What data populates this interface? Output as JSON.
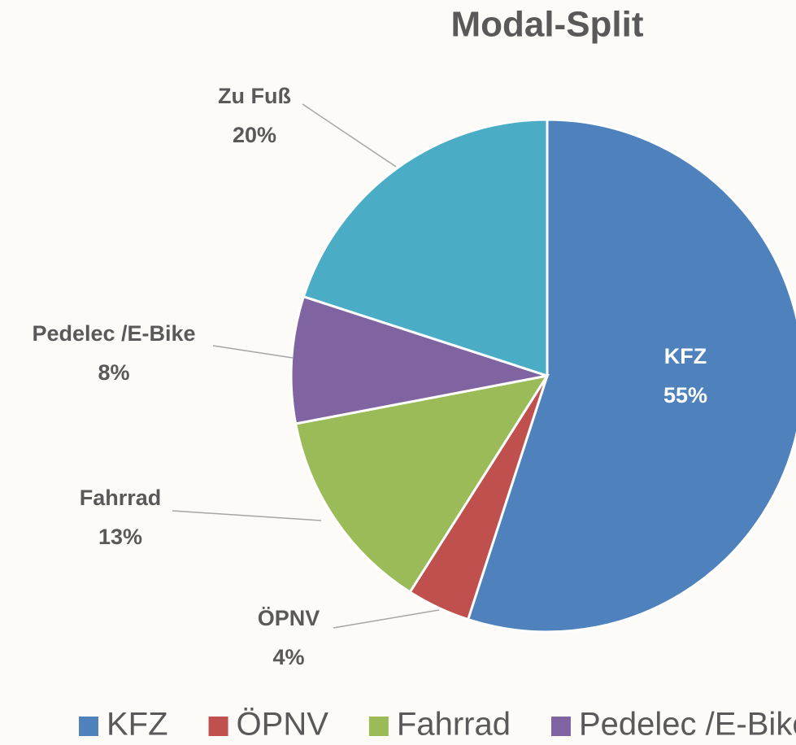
{
  "chart_data": {
    "type": "pie",
    "title": "Modal-Split",
    "categories": [
      "KFZ",
      "ÖPNV",
      "Fahrrad",
      "Pedelec /E-Bike",
      "Zu Fuß"
    ],
    "values": [
      55,
      4,
      13,
      8,
      20
    ],
    "value_labels": [
      "55%",
      "4%",
      "13%",
      "8%",
      "20%"
    ],
    "colors": [
      "#4f81bd",
      "#c0504d",
      "#9bbb59",
      "#8064a2",
      "#4bacc6"
    ],
    "legend": "bottom"
  }
}
